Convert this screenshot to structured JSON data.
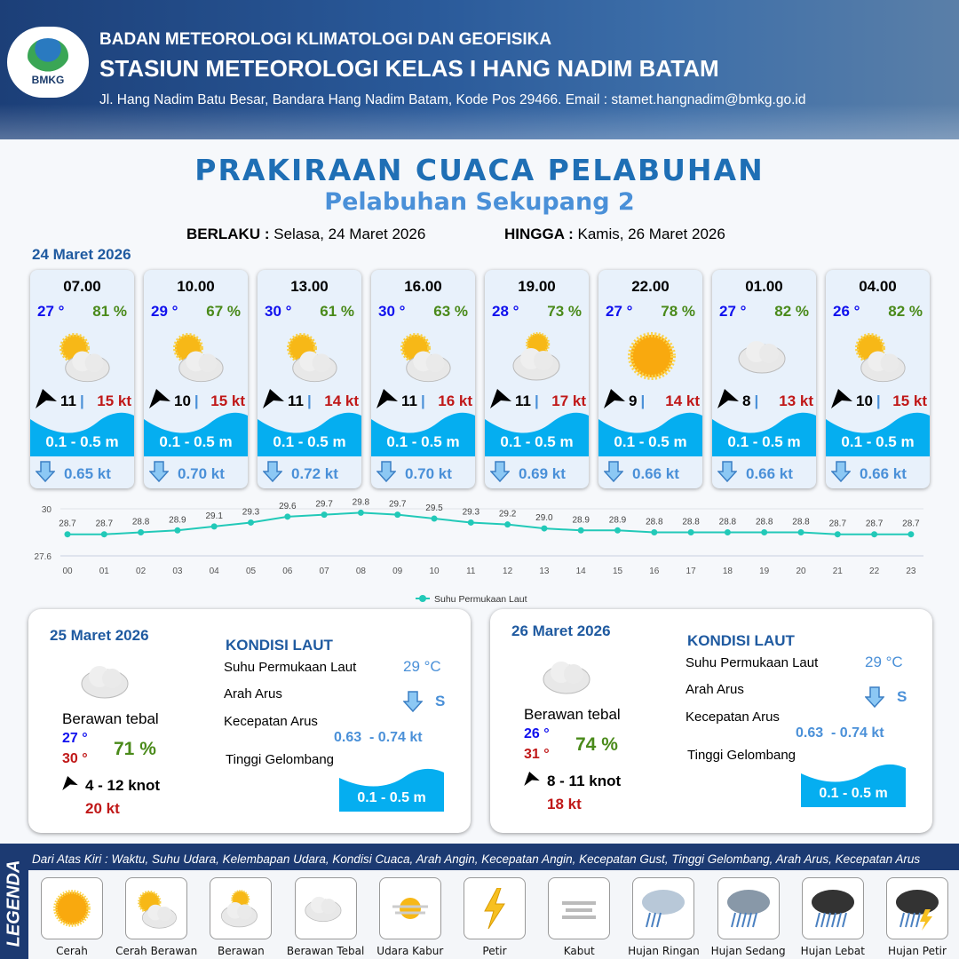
{
  "header": {
    "logo_text": "BMKG",
    "agency": "BADAN METEOROLOGI KLIMATOLOGI DAN GEOFISIKA",
    "station": "STASIUN METEOROLOGI KELAS I HANG NADIM BATAM",
    "address": "Jl. Hang Nadim Batu Besar, Bandara Hang Nadim Batam, Kode Pos 29466. Email : stamet.hangnadim@bmkg.go.id"
  },
  "title": "PRAKIRAAN CUACA PELABUHAN",
  "subtitle": "Pelabuhan Sekupang 2",
  "validity": {
    "from_label": "BERLAKU :",
    "from": "Selasa, 24 Maret 2026",
    "to_label": "HINGGA :",
    "to": "Kamis, 26 Maret 2026"
  },
  "day1": {
    "date": "24 Maret 2026",
    "cards": [
      {
        "time": "07.00",
        "temp": "27 °",
        "rh": "81 %",
        "icon": "partly-cloudy",
        "wind": "11",
        "sep": "|",
        "gust": "15 kt",
        "wave": "0.1 - 0.5 m",
        "current": "0.65 kt"
      },
      {
        "time": "10.00",
        "temp": "29 °",
        "rh": "67 %",
        "icon": "partly-cloudy",
        "wind": "10",
        "sep": "|",
        "gust": "15 kt",
        "wave": "0.1 - 0.5 m",
        "current": "0.70 kt"
      },
      {
        "time": "13.00",
        "temp": "30 °",
        "rh": "61 %",
        "icon": "partly-cloudy",
        "wind": "11",
        "sep": "|",
        "gust": "14 kt",
        "wave": "0.1 - 0.5 m",
        "current": "0.72 kt"
      },
      {
        "time": "16.00",
        "temp": "30 °",
        "rh": "63 %",
        "icon": "partly-cloudy",
        "wind": "11",
        "sep": "|",
        "gust": "16 kt",
        "wave": "0.1 - 0.5 m",
        "current": "0.70 kt"
      },
      {
        "time": "19.00",
        "temp": "28 °",
        "rh": "73 %",
        "icon": "cloudy",
        "wind": "11",
        "sep": "|",
        "gust": "17 kt",
        "wave": "0.1 - 0.5 m",
        "current": "0.69 kt"
      },
      {
        "time": "22.00",
        "temp": "27 °",
        "rh": "78 %",
        "icon": "sunny",
        "wind": "9",
        "sep": "|",
        "gust": "14 kt",
        "wave": "0.1 - 0.5 m",
        "current": "0.66 kt"
      },
      {
        "time": "01.00",
        "temp": "27 °",
        "rh": "82 %",
        "icon": "overcast",
        "wind": "8",
        "sep": "|",
        "gust": "13 kt",
        "wave": "0.1 - 0.5 m",
        "current": "0.66 kt"
      },
      {
        "time": "04.00",
        "temp": "26 °",
        "rh": "82 %",
        "icon": "partly-cloudy",
        "wind": "10",
        "sep": "|",
        "gust": "15 kt",
        "wave": "0.1 - 0.5 m",
        "current": "0.66 kt"
      }
    ]
  },
  "chart_data": {
    "type": "line",
    "categories": [
      "00",
      "01",
      "02",
      "03",
      "04",
      "05",
      "06",
      "07",
      "08",
      "09",
      "10",
      "11",
      "12",
      "13",
      "14",
      "15",
      "16",
      "17",
      "18",
      "19",
      "20",
      "21",
      "22",
      "23"
    ],
    "series": [
      {
        "name": "Suhu Permukaan Laut",
        "values": [
          28.7,
          28.7,
          28.8,
          28.9,
          29.1,
          29.3,
          29.6,
          29.7,
          29.8,
          29.7,
          29.5,
          29.3,
          29.2,
          29.0,
          28.9,
          28.9,
          28.8,
          28.8,
          28.8,
          28.8,
          28.8,
          28.7,
          28.7,
          28.7
        ]
      }
    ],
    "y_ticks": [
      "30",
      "27.6"
    ],
    "ylim": [
      27.6,
      30
    ],
    "grid": true,
    "legend": "bottom",
    "color": "#22c9b8"
  },
  "days": [
    {
      "date": "25 Maret 2026",
      "condition": "Berawan tebal",
      "temp_min": "27 °",
      "temp_max": "30 °",
      "rh": "71 %",
      "wind": "4  - 12 knot",
      "gust": "20 kt",
      "sea_title": "KONDISI LAUT",
      "sst_label": "Suhu Permukaan Laut",
      "sst": "29 °C",
      "dir_label": "Arah Arus",
      "dir": "S",
      "speed_label": "Kecepatan Arus",
      "speed": "0.63  - 0.74 kt",
      "wave_label": "Tinggi Gelombang",
      "wave": "0.1 - 0.5 m"
    },
    {
      "date": "26 Maret 2026",
      "condition": "Berawan tebal",
      "temp_min": "26 °",
      "temp_max": "31 °",
      "rh": "74 %",
      "wind": "8  - 11 knot",
      "gust": "18 kt",
      "sea_title": "KONDISI LAUT",
      "sst_label": "Suhu Permukaan Laut",
      "sst": "29 °C",
      "dir_label": "Arah Arus",
      "dir": "S",
      "speed_label": "Kecepatan Arus",
      "speed": "0.63  - 0.74 kt",
      "wave_label": "Tinggi Gelombang",
      "wave": "0.1 - 0.5 m"
    }
  ],
  "legend": {
    "title": "LEGENDA",
    "note": "Dari Atas Kiri : Waktu, Suhu Udara, Kelembapan Udara, Kondisi Cuaca, Arah Angin, Kecepatan Angin, Kecepatan Gust, Tinggi Gelombang, Arah Arus, Kecepatan Arus",
    "items": [
      "Cerah",
      "Cerah Berawan",
      "Berawan",
      "Berawan Tebal",
      "Udara Kabur",
      "Petir",
      "Kabut",
      "Hujan Ringan",
      "Hujan Sedang",
      "Hujan Lebat",
      "Hujan Petir"
    ]
  }
}
